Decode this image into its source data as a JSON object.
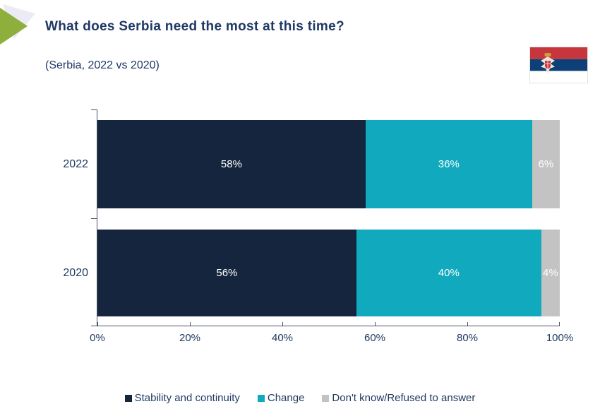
{
  "header": {
    "title": "What does Serbia need the most at this time?",
    "subtitle": "(Serbia, 2022 vs 2020)"
  },
  "icons": {
    "accent_arrow": "green-right-triangle-icon",
    "flag": "serbia-flag-icon"
  },
  "colors": {
    "title_text": "#1F3864",
    "axis_text": "#203A60",
    "axis_line": "#4A5264",
    "accent_green": "#8FAF3C",
    "arrow_shadow": "#ECEBF3",
    "flag_red": "#C6363C",
    "flag_blue": "#0C4076",
    "flag_white": "#FFFFFF",
    "crown_gold": "#C9A13B"
  },
  "chart_data": {
    "type": "bar",
    "stacked": true,
    "orientation": "horizontal",
    "title": "What does Serbia need the most at this time?",
    "subtitle": "(Serbia, 2022 vs 2020)",
    "categories": [
      "2022",
      "2020"
    ],
    "series": [
      {
        "name": "Stability and continuity",
        "color": "#15253D",
        "values": [
          58,
          56
        ]
      },
      {
        "name": "Change",
        "color": "#10A9BD",
        "values": [
          36,
          40
        ]
      },
      {
        "name": "Don't know/Refused to answer",
        "color": "#C3C3C3",
        "values": [
          6,
          4
        ]
      }
    ],
    "x_ticks": [
      "0%",
      "20%",
      "40%",
      "60%",
      "80%",
      "100%"
    ],
    "xlim": [
      0,
      100
    ],
    "value_suffix": "%",
    "data_label_color": "#FFFFFF",
    "grid": false,
    "legend_position": "bottom"
  }
}
